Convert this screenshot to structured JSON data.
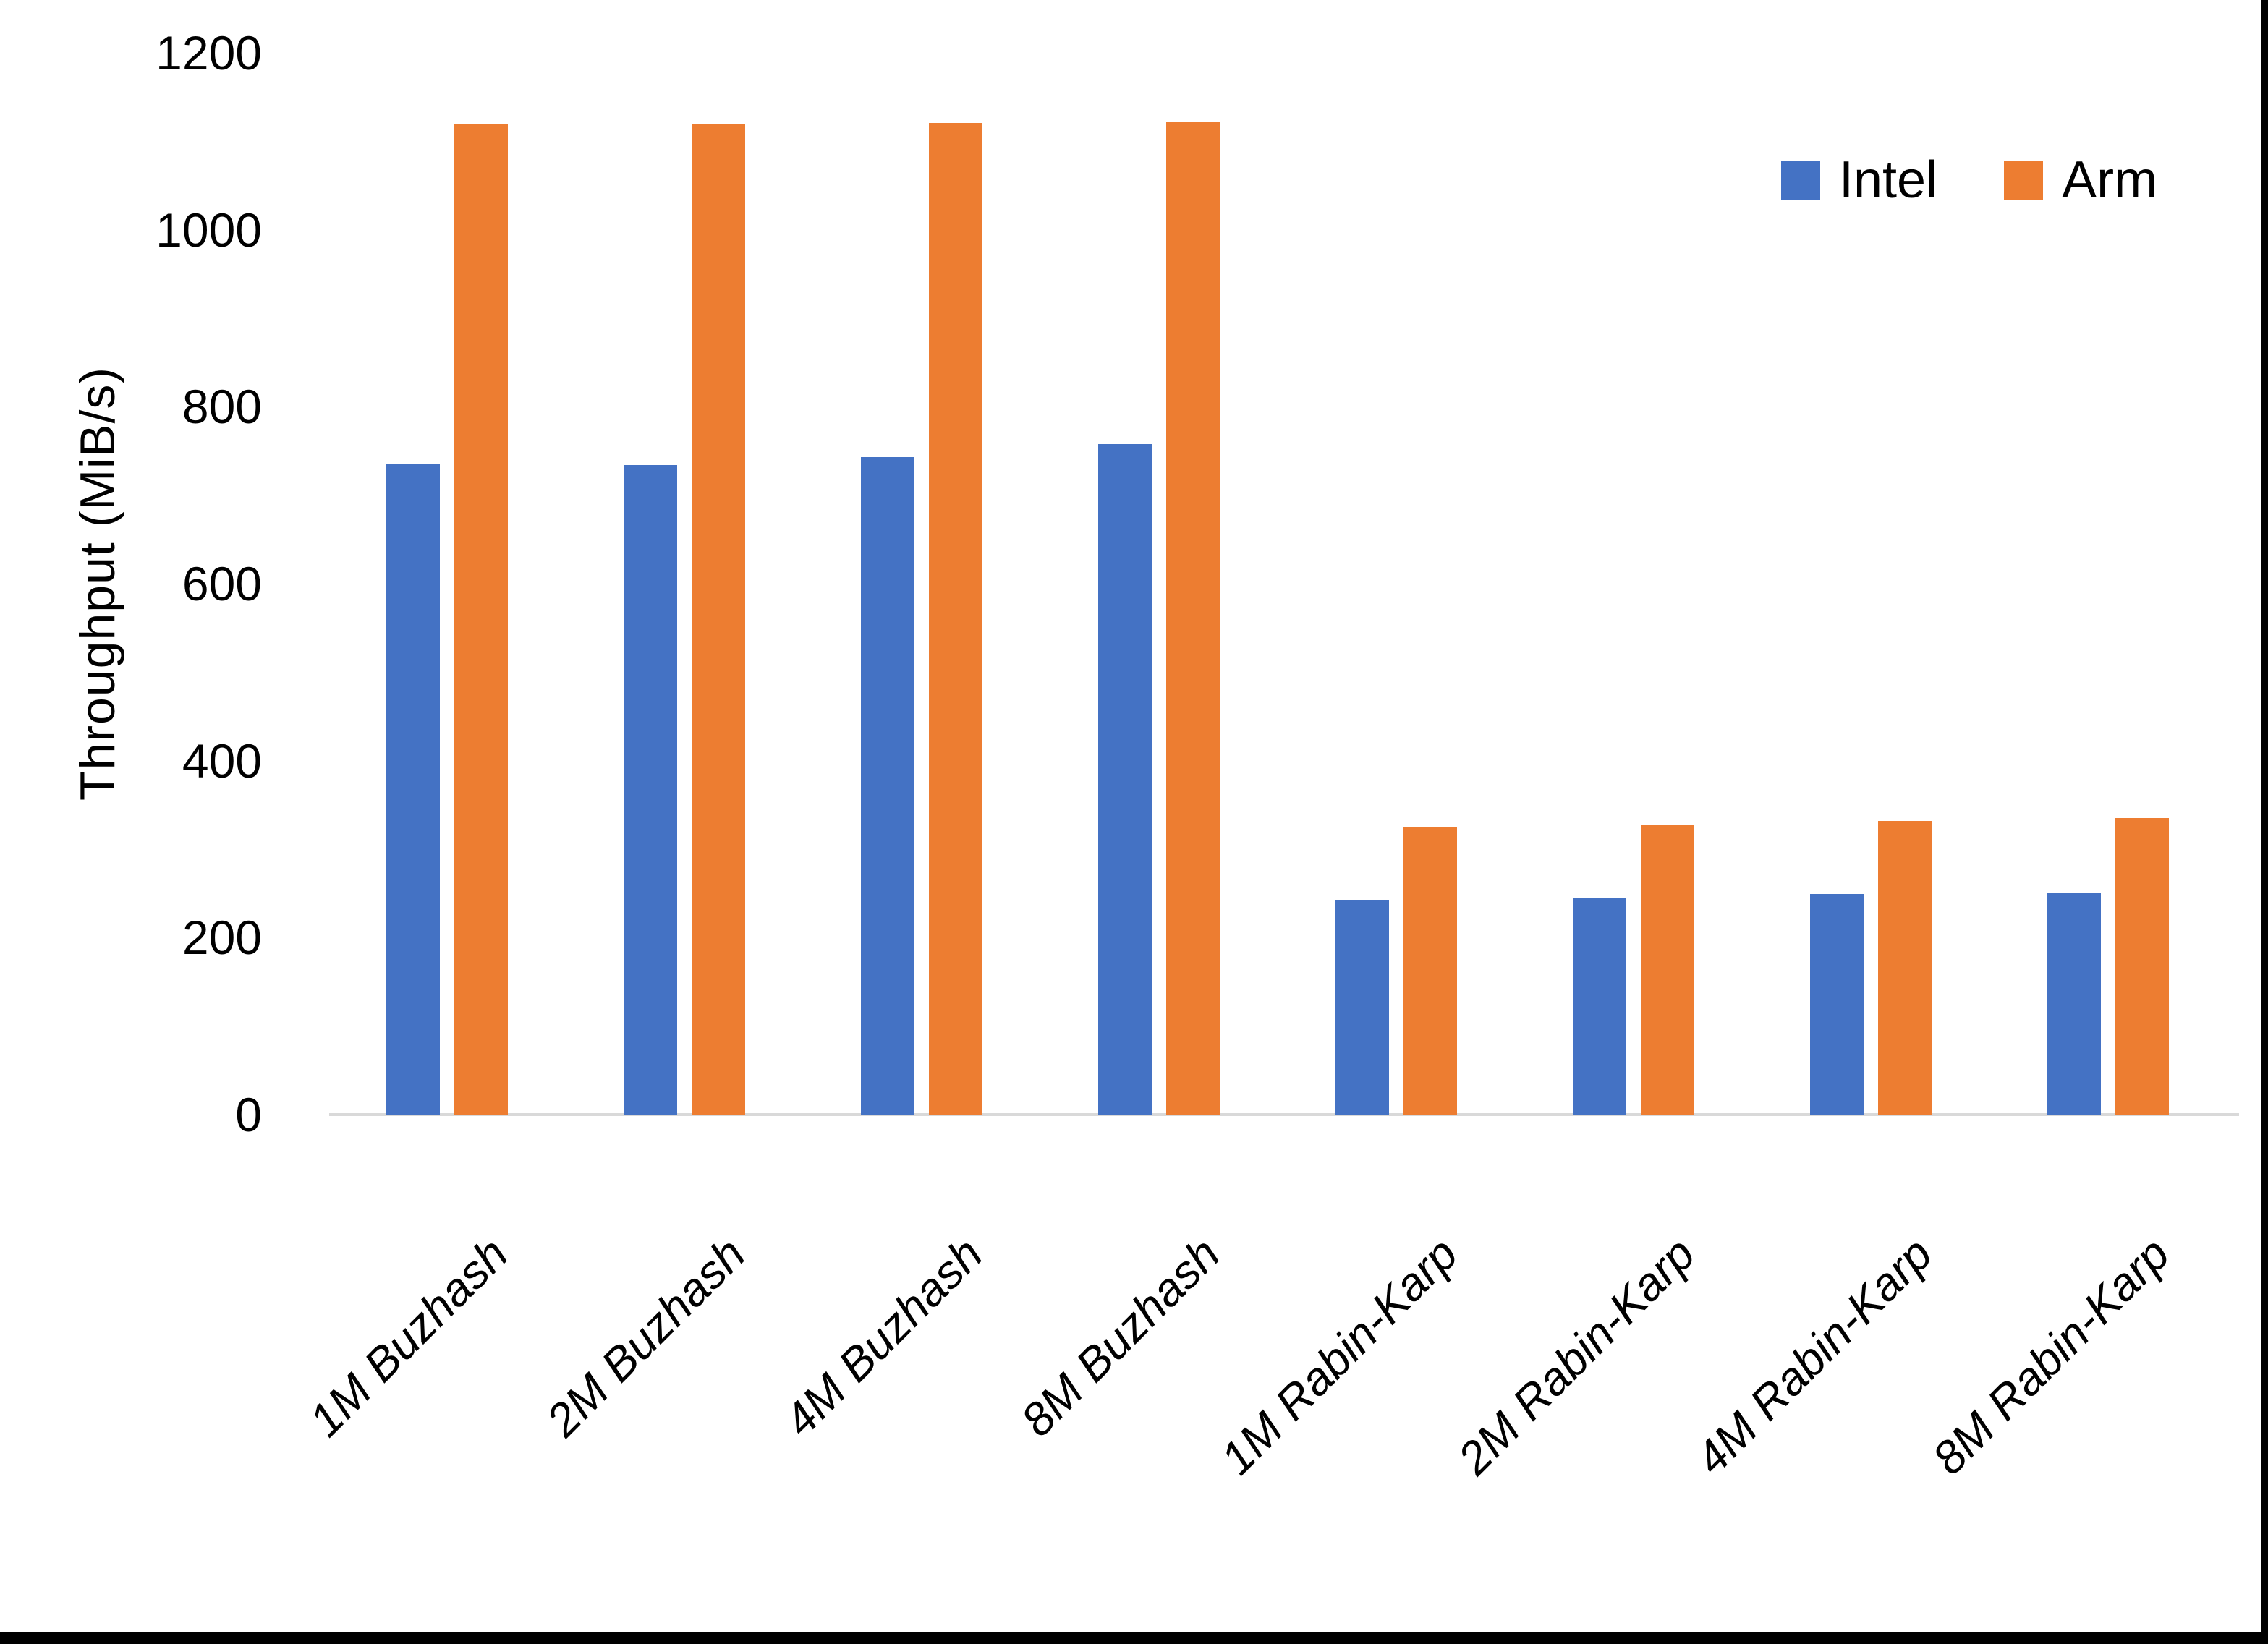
{
  "chart_data": {
    "type": "bar",
    "title": "",
    "xlabel": "",
    "ylabel": "Throughput (MiB/s)",
    "ylim": [
      0,
      1200
    ],
    "yticks": [
      0,
      200,
      400,
      600,
      800,
      1000,
      1200
    ],
    "grid": false,
    "legend_position": "top-right",
    "categories": [
      "1M Buzhash",
      "2M Buzhash",
      "4M Buzhash",
      "8M Buzhash",
      "1M Rabin-Karp",
      "2M Rabin-Karp",
      "4M Rabin-Karp",
      "8M Rabin-Karp"
    ],
    "series": [
      {
        "name": "Intel",
        "color": "#4472C4",
        "values": [
          735,
          734,
          743,
          758,
          243,
          245,
          249,
          251
        ]
      },
      {
        "name": "Arm",
        "color": "#ED7D31",
        "values": [
          1119,
          1120,
          1121,
          1122,
          325,
          328,
          332,
          335
        ]
      }
    ],
    "axis_line_color": "#D9D9D9",
    "frame_border_color": "#000000"
  }
}
